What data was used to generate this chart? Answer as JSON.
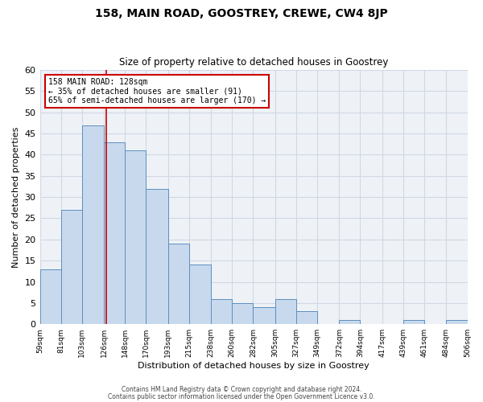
{
  "title": "158, MAIN ROAD, GOOSTREY, CREWE, CW4 8JP",
  "subtitle": "Size of property relative to detached houses in Goostrey",
  "xlabel": "Distribution of detached houses by size in Goostrey",
  "ylabel": "Number of detached properties",
  "bar_left_edges": [
    59,
    81,
    103,
    126,
    148,
    170,
    193,
    215,
    238,
    260,
    282,
    305,
    327,
    349,
    372,
    394,
    417,
    439,
    461,
    484
  ],
  "bar_widths": [
    22,
    22,
    23,
    22,
    22,
    23,
    22,
    23,
    22,
    22,
    23,
    22,
    22,
    23,
    22,
    23,
    22,
    22,
    23,
    22
  ],
  "bar_heights": [
    13,
    27,
    47,
    43,
    41,
    32,
    19,
    14,
    6,
    5,
    4,
    6,
    3,
    0,
    1,
    0,
    0,
    1,
    0,
    1
  ],
  "tick_labels": [
    "59sqm",
    "81sqm",
    "103sqm",
    "126sqm",
    "148sqm",
    "170sqm",
    "193sqm",
    "215sqm",
    "238sqm",
    "260sqm",
    "282sqm",
    "305sqm",
    "327sqm",
    "349sqm",
    "372sqm",
    "394sqm",
    "417sqm",
    "439sqm",
    "461sqm",
    "484sqm",
    "506sqm"
  ],
  "bar_color": "#c9d9ed",
  "bar_edge_color": "#5a8fc0",
  "grid_color": "#d0d8e4",
  "background_color": "#eef2f7",
  "vline_x": 128,
  "vline_color": "#cc0000",
  "annotation_line1": "158 MAIN ROAD: 128sqm",
  "annotation_line2": "← 35% of detached houses are smaller (91)",
  "annotation_line3": "65% of semi-detached houses are larger (170) →",
  "annotation_box_color": "#ffffff",
  "annotation_box_edge_color": "#cc0000",
  "ylim": [
    0,
    60
  ],
  "yticks": [
    0,
    5,
    10,
    15,
    20,
    25,
    30,
    35,
    40,
    45,
    50,
    55,
    60
  ],
  "footer1": "Contains HM Land Registry data © Crown copyright and database right 2024.",
  "footer2": "Contains public sector information licensed under the Open Government Licence v3.0."
}
